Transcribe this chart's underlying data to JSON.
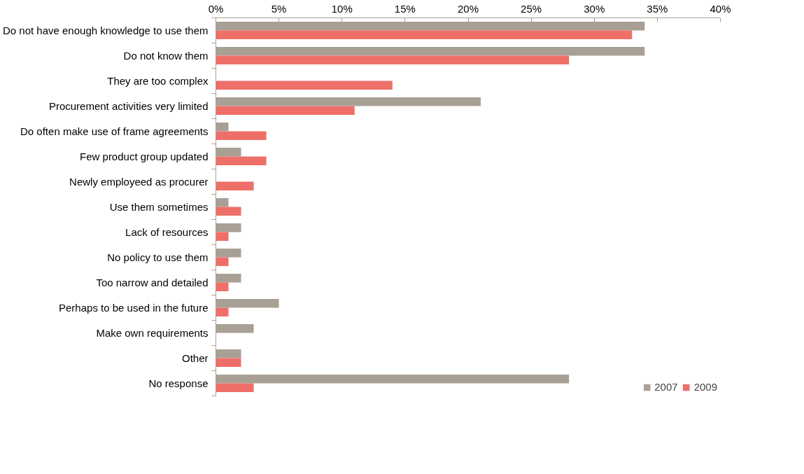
{
  "chart_data": {
    "type": "bar",
    "orientation": "horizontal",
    "categories": [
      "Do not have enough knowledge to use them",
      "Do not know them",
      "They are too complex",
      "Procurement activities very limited",
      "Do often make use of frame agreements",
      "Few product group updated",
      "Newly employeed as procurer",
      "Use them sometimes",
      "Lack of resources",
      "No policy to use them",
      "Too narrow and detailed",
      "Perhaps to be used in the future",
      "Make own requirements",
      "Other",
      "No response"
    ],
    "series": [
      {
        "name": "2007",
        "color": "#a9a095",
        "values": [
          34,
          34,
          null,
          21,
          1,
          2,
          null,
          1,
          2,
          2,
          2,
          5,
          3,
          2,
          28
        ]
      },
      {
        "name": "2009",
        "color": "#ee6f68",
        "values": [
          33,
          28,
          14,
          11,
          4,
          4,
          3,
          2,
          1,
          1,
          1,
          1,
          null,
          2,
          3
        ]
      }
    ],
    "xlim": [
      0,
      40
    ],
    "xticks": [
      {
        "value": 0,
        "label": "0%"
      },
      {
        "value": 5,
        "label": "5%"
      },
      {
        "value": 10,
        "label": "10%"
      },
      {
        "value": 15,
        "label": "15%"
      },
      {
        "value": 20,
        "label": "20%"
      },
      {
        "value": 25,
        "label": "25%"
      },
      {
        "value": 30,
        "label": "30%"
      },
      {
        "value": 35,
        "label": "35%"
      },
      {
        "value": 40,
        "label": "40%"
      }
    ],
    "grid": false,
    "legend": "bottom right"
  }
}
